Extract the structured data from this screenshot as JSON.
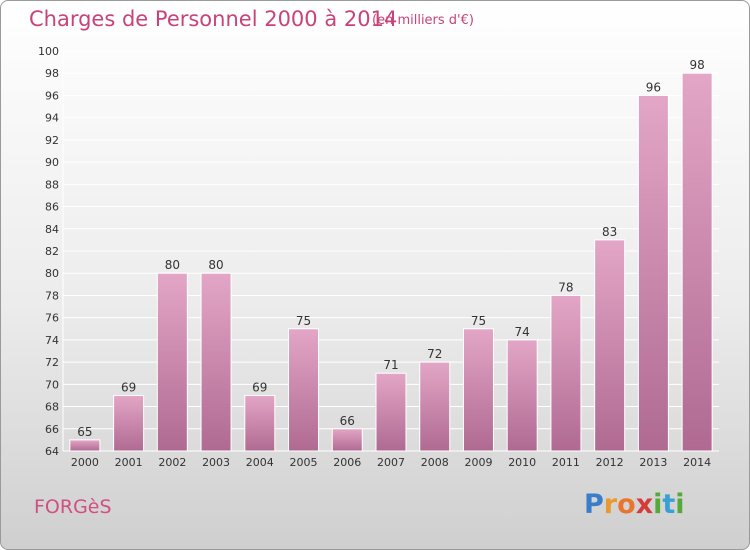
{
  "header": {
    "title": "Charges de Personnel 2000 à 2014",
    "subtitle": "(en milliers d'€)"
  },
  "footer": {
    "commune": "FORGèS",
    "logo_letters": [
      "P",
      "r",
      "o",
      "x",
      "i",
      "t",
      "i"
    ],
    "logo_colors": [
      "#3a7ecb",
      "#e89a2e",
      "#e8762e",
      "#d43c3c",
      "#55a83a",
      "#3aa0d4",
      "#55a83a"
    ]
  },
  "colors": {
    "bar_top": "#e3a6c6",
    "bar_bottom": "#b06a92",
    "bar_edge": "#ffffff",
    "title": "#c8437a",
    "grid": "#ffffff",
    "axis_text": "#333333"
  },
  "chart_data": {
    "type": "bar",
    "categories": [
      "2000",
      "2001",
      "2002",
      "2003",
      "2004",
      "2005",
      "2006",
      "2007",
      "2008",
      "2009",
      "2010",
      "2011",
      "2012",
      "2013",
      "2014"
    ],
    "values": [
      65,
      69,
      80,
      80,
      69,
      75,
      66,
      71,
      72,
      75,
      74,
      78,
      83,
      96,
      98
    ],
    "ylim": [
      64,
      100
    ],
    "yticks": [
      64,
      66,
      68,
      70,
      72,
      74,
      76,
      78,
      80,
      82,
      84,
      86,
      88,
      90,
      92,
      94,
      96,
      98,
      100
    ],
    "grid": true,
    "data_labels": true
  }
}
